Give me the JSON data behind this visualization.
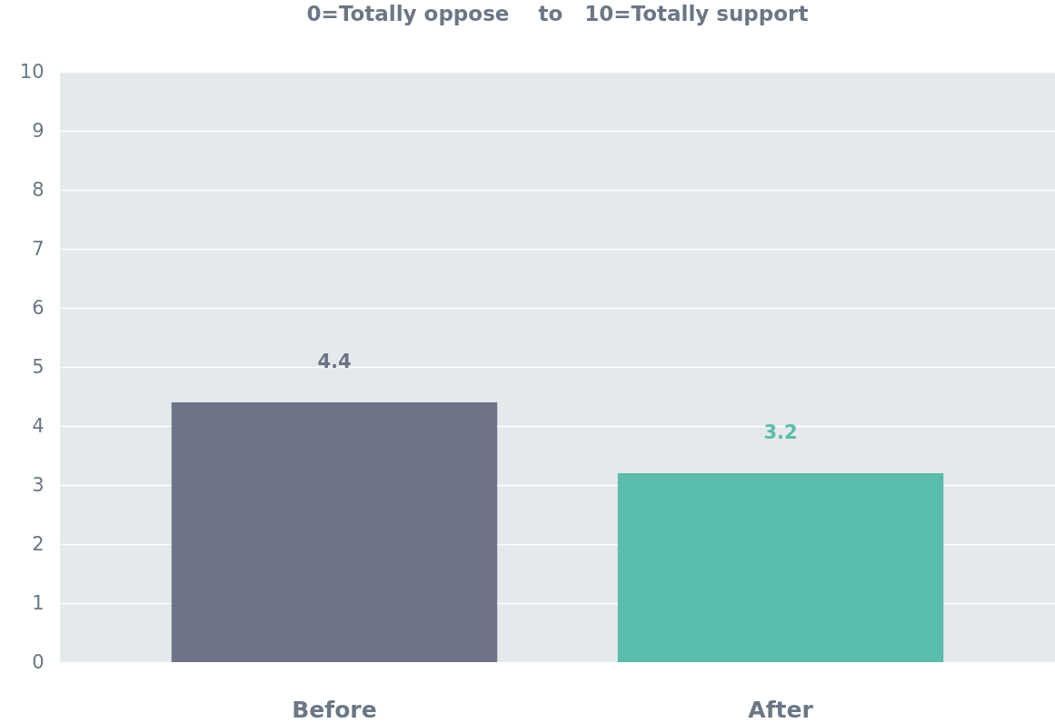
{
  "chart_data": {
    "type": "bar",
    "title": "0=Totally oppose    to   10=Totally support",
    "categories": [
      "Before",
      "After"
    ],
    "values": [
      4.4,
      3.2
    ],
    "colors": [
      "#6f7387",
      "#5abcaa"
    ],
    "ylim": [
      0,
      10
    ],
    "yticks": [
      0,
      1,
      2,
      3,
      4,
      5,
      6,
      7,
      8,
      9,
      10
    ],
    "grid": "y",
    "data_labels": true
  }
}
